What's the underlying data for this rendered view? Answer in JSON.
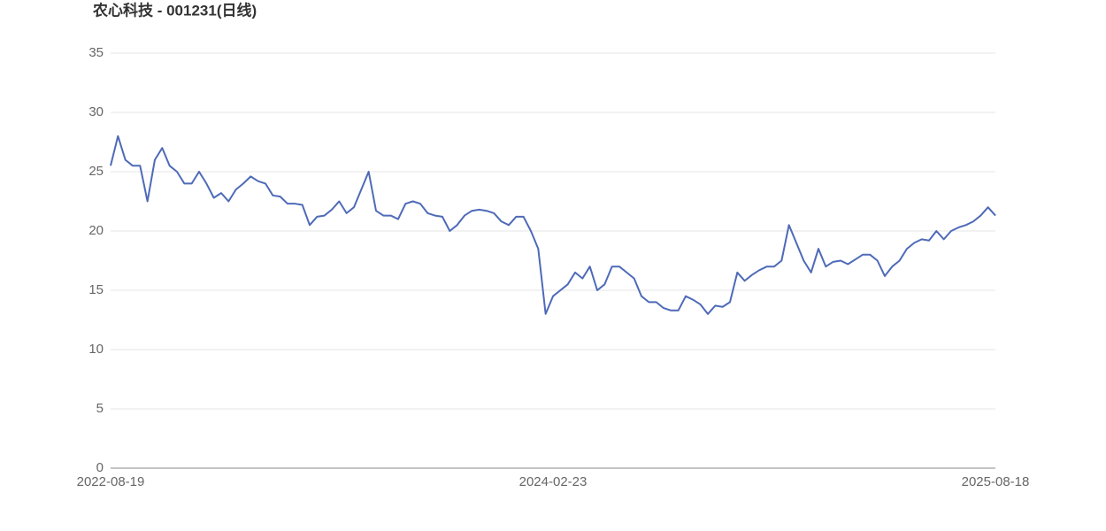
{
  "chart_data": {
    "type": "line",
    "title": "农心科技 - 001231(日线)",
    "categories": [
      "2022-08-19",
      null,
      null,
      null,
      null,
      null,
      null,
      null,
      null,
      null,
      null,
      null,
      null,
      null,
      null,
      null,
      null,
      null,
      null,
      null,
      null,
      null,
      null,
      null,
      null,
      null,
      null,
      null,
      null,
      null,
      null,
      null,
      null,
      null,
      null,
      null,
      null,
      null,
      null,
      null,
      null,
      null,
      null,
      null,
      null,
      null,
      null,
      null,
      null,
      null,
      null,
      null,
      null,
      null,
      null,
      null,
      null,
      null,
      null,
      null,
      "2024-02-23",
      null,
      null,
      null,
      null,
      null,
      null,
      null,
      null,
      null,
      null,
      null,
      null,
      null,
      null,
      null,
      null,
      null,
      null,
      null,
      null,
      null,
      null,
      null,
      null,
      null,
      null,
      null,
      null,
      null,
      null,
      null,
      null,
      null,
      null,
      null,
      null,
      null,
      null,
      null,
      null,
      null,
      null,
      null,
      null,
      null,
      null,
      null,
      null,
      null,
      null,
      null,
      null,
      null,
      null,
      null,
      null,
      null,
      null,
      null,
      "2025-08-18"
    ],
    "values": [
      25.5,
      28,
      26,
      25.5,
      25.5,
      22.5,
      26,
      27,
      25.5,
      25,
      24,
      24,
      25,
      24,
      22.8,
      23.2,
      22.5,
      23.5,
      24,
      24.6,
      24.2,
      24,
      23,
      22.9,
      22.3,
      22.3,
      22.2,
      20.5,
      21.2,
      21.3,
      21.8,
      22.5,
      21.5,
      22,
      23.5,
      25,
      21.7,
      21.3,
      21.3,
      21,
      22.3,
      22.5,
      22.3,
      21.5,
      21.3,
      21.2,
      20,
      20.5,
      21.3,
      21.7,
      21.8,
      21.7,
      21.5,
      20.8,
      20.5,
      21.2,
      21.2,
      20,
      18.5,
      13,
      14.5,
      15,
      15.5,
      16.5,
      16,
      17,
      15,
      15.5,
      17,
      17,
      16.5,
      16,
      14.5,
      14,
      14,
      13.5,
      13.3,
      13.3,
      14.5,
      14.2,
      13.8,
      13,
      13.7,
      13.6,
      14,
      16.5,
      15.8,
      16.3,
      16.7,
      17,
      17,
      17.5,
      20.5,
      19,
      17.5,
      16.5,
      18.5,
      17,
      17.4,
      17.5,
      17.2,
      17.6,
      18,
      18,
      17.5,
      16.2,
      17,
      17.5,
      18.5,
      19,
      19.3,
      19.2,
      20,
      19.3,
      20,
      20.3,
      20.5,
      20.8,
      21.3,
      22,
      21.3
    ],
    "color": "#4e6ab8",
    "ylim": [
      0,
      35
    ],
    "yticks": [
      0,
      5,
      10,
      15,
      20,
      25,
      30,
      35
    ],
    "grid": true
  }
}
